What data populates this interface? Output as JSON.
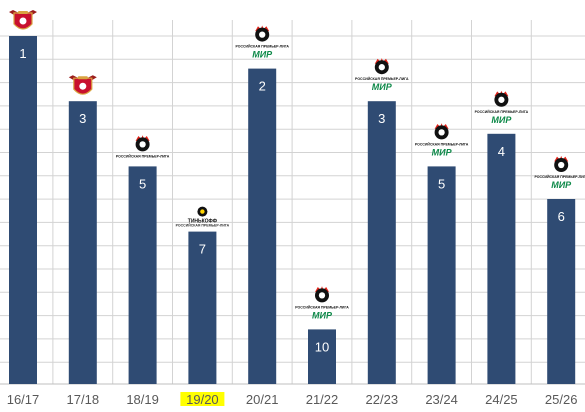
{
  "chart_data": {
    "type": "bar",
    "categories": [
      "16/17",
      "17/18",
      "18/19",
      "19/20",
      "20/21",
      "21/22",
      "22/23",
      "23/24",
      "24/25",
      "25/26"
    ],
    "values": [
      1,
      3,
      5,
      7,
      2,
      10,
      3,
      5,
      4,
      6
    ],
    "bar_labels": [
      "1",
      "3",
      "5",
      "7",
      "2",
      "10",
      "3",
      "5",
      "4",
      "6"
    ],
    "highlighted_category": "19/20",
    "logos": [
      "fnl-shield",
      "fnl-shield",
      "rpl-logo",
      "tinkoff-rpl-logo",
      "rpl-mir-logo",
      "rpl-mir-logo",
      "rpl-mir-logo",
      "rpl-mir-logo",
      "rpl-mir-logo",
      "rpl-mir-logo"
    ],
    "logo_text": {
      "rpl": "РОССИЙСКАЯ ПРЕМЬЕР-ЛИГА",
      "mir": "МИР",
      "tinkoff": "ТИНЬКОФФ"
    },
    "grid": true,
    "legend": "none",
    "bar_color": "#2f4b73",
    "highlight_color": "#ffff00"
  }
}
